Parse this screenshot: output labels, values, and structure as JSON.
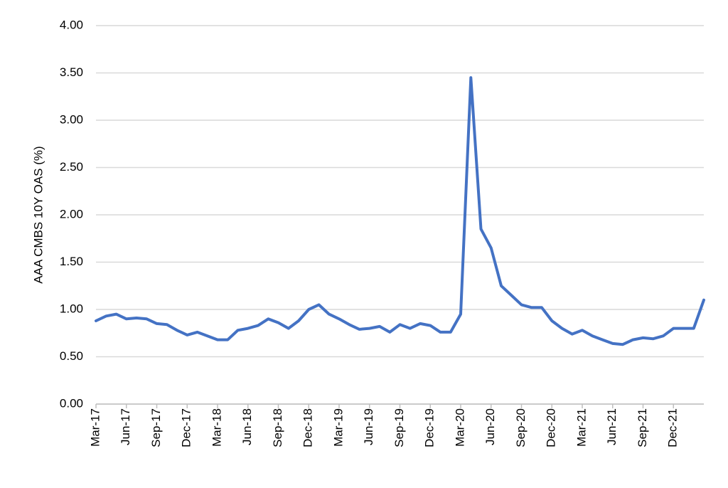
{
  "chart_data": {
    "type": "line",
    "y_label": "AAA CMBS 10Y OAS (%)",
    "categories": [
      "Mar-17",
      null,
      null,
      "Jun-17",
      null,
      null,
      "Sep-17",
      null,
      null,
      "Dec-17",
      null,
      null,
      "Mar-18",
      null,
      null,
      "Jun-18",
      null,
      null,
      "Sep-18",
      null,
      null,
      "Dec-18",
      null,
      null,
      "Mar-19",
      null,
      null,
      "Jun-19",
      null,
      null,
      "Sep-19",
      null,
      null,
      "Dec-19",
      null,
      null,
      "Mar-20",
      null,
      null,
      "Jun-20",
      null,
      null,
      "Sep-20",
      null,
      null,
      "Dec-20",
      null,
      null,
      "Mar-21",
      null,
      null,
      "Jun-21",
      null,
      null,
      "Sep-21",
      null,
      null,
      "Dec-21",
      null,
      null,
      null
    ],
    "series": [
      {
        "color": "#4472c4",
        "values": [
          0.88,
          0.93,
          0.95,
          0.9,
          0.91,
          0.9,
          0.85,
          0.84,
          0.78,
          0.73,
          0.76,
          0.72,
          0.68,
          0.68,
          0.78,
          0.8,
          0.83,
          0.9,
          0.86,
          0.8,
          0.88,
          1.0,
          1.05,
          0.95,
          0.9,
          0.84,
          0.79,
          0.8,
          0.82,
          0.76,
          0.84,
          0.8,
          0.85,
          0.83,
          0.76,
          0.76,
          0.95,
          3.45,
          1.85,
          1.65,
          1.25,
          1.15,
          1.05,
          1.02,
          1.02,
          0.88,
          0.8,
          0.74,
          0.78,
          0.72,
          0.68,
          0.64,
          0.63,
          0.68,
          0.7,
          0.69,
          0.72,
          0.8,
          0.8,
          0.8,
          1.1
        ]
      }
    ],
    "ylim": [
      0,
      4
    ],
    "yticks": [
      {
        "value": 0,
        "label": "0.00"
      },
      {
        "value": 0.5,
        "label": "0.50"
      },
      {
        "value": 1,
        "label": "1.00"
      },
      {
        "value": 1.5,
        "label": "1.50"
      },
      {
        "value": 2,
        "label": "2.00"
      },
      {
        "value": 2.5,
        "label": "2.50"
      },
      {
        "value": 3,
        "label": "3.00"
      },
      {
        "value": 3.5,
        "label": "3.50"
      },
      {
        "value": 4,
        "label": "4.00"
      }
    ],
    "grid": true
  }
}
